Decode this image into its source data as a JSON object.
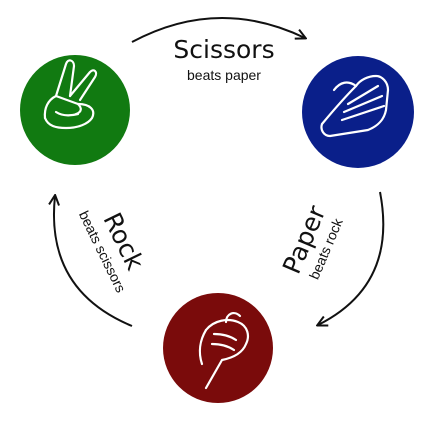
{
  "scissors": {
    "title": "Scissors",
    "subtitle": "beats paper",
    "color": "#117a11"
  },
  "paper": {
    "title": "Paper",
    "subtitle": "beats rock",
    "color": "#0a1f8a"
  },
  "rock": {
    "title": "Rock",
    "subtitle": "beats scissors",
    "color": "#7a0b0b"
  },
  "icons": {
    "scissors": "scissors-hand-icon",
    "paper": "paper-hand-icon",
    "rock": "rock-fist-icon"
  }
}
